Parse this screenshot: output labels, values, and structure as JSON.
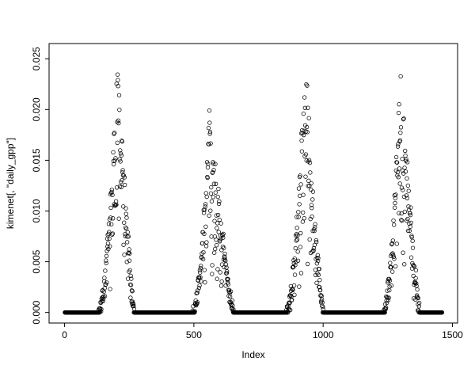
{
  "figure": {
    "background": "#ffffff",
    "point_color": "#000000"
  },
  "chart_data": {
    "type": "scatter",
    "title": "",
    "xlabel": "Index",
    "ylabel": "kimenet[, \"daily_gpp\"]",
    "xlim": [
      0,
      1500
    ],
    "ylim": [
      0.0,
      0.025
    ],
    "xticks": [
      0,
      500,
      1000,
      1500
    ],
    "xtick_labels": [
      "0",
      "500",
      "1000",
      "1500"
    ],
    "yticks": [
      0.0,
      0.005,
      0.01,
      0.015,
      0.02,
      0.025
    ],
    "ytick_labels": [
      "0.000",
      "0.005",
      "0.010",
      "0.015",
      "0.020",
      "0.025"
    ],
    "legend": null,
    "grid": false,
    "marker": "open-circle",
    "n_points": 1460,
    "seed": 7,
    "baseline_value": 0.0,
    "description": "Daily GPP time series with four annual growing-season peaks separated by long runs of exact zeros along the baseline",
    "seasonal_pattern": [
      {
        "rise_start": 130,
        "peak_day": 205,
        "fall_end": 270,
        "peak_value": 0.0255
      },
      {
        "rise_start": 495,
        "peak_day": 560,
        "fall_end": 655,
        "peak_value": 0.0203
      },
      {
        "rise_start": 858,
        "peak_day": 930,
        "fall_end": 1000,
        "peak_value": 0.0255
      },
      {
        "rise_start": 1232,
        "peak_day": 1300,
        "fall_end": 1375,
        "peak_value": 0.0245
      }
    ]
  }
}
